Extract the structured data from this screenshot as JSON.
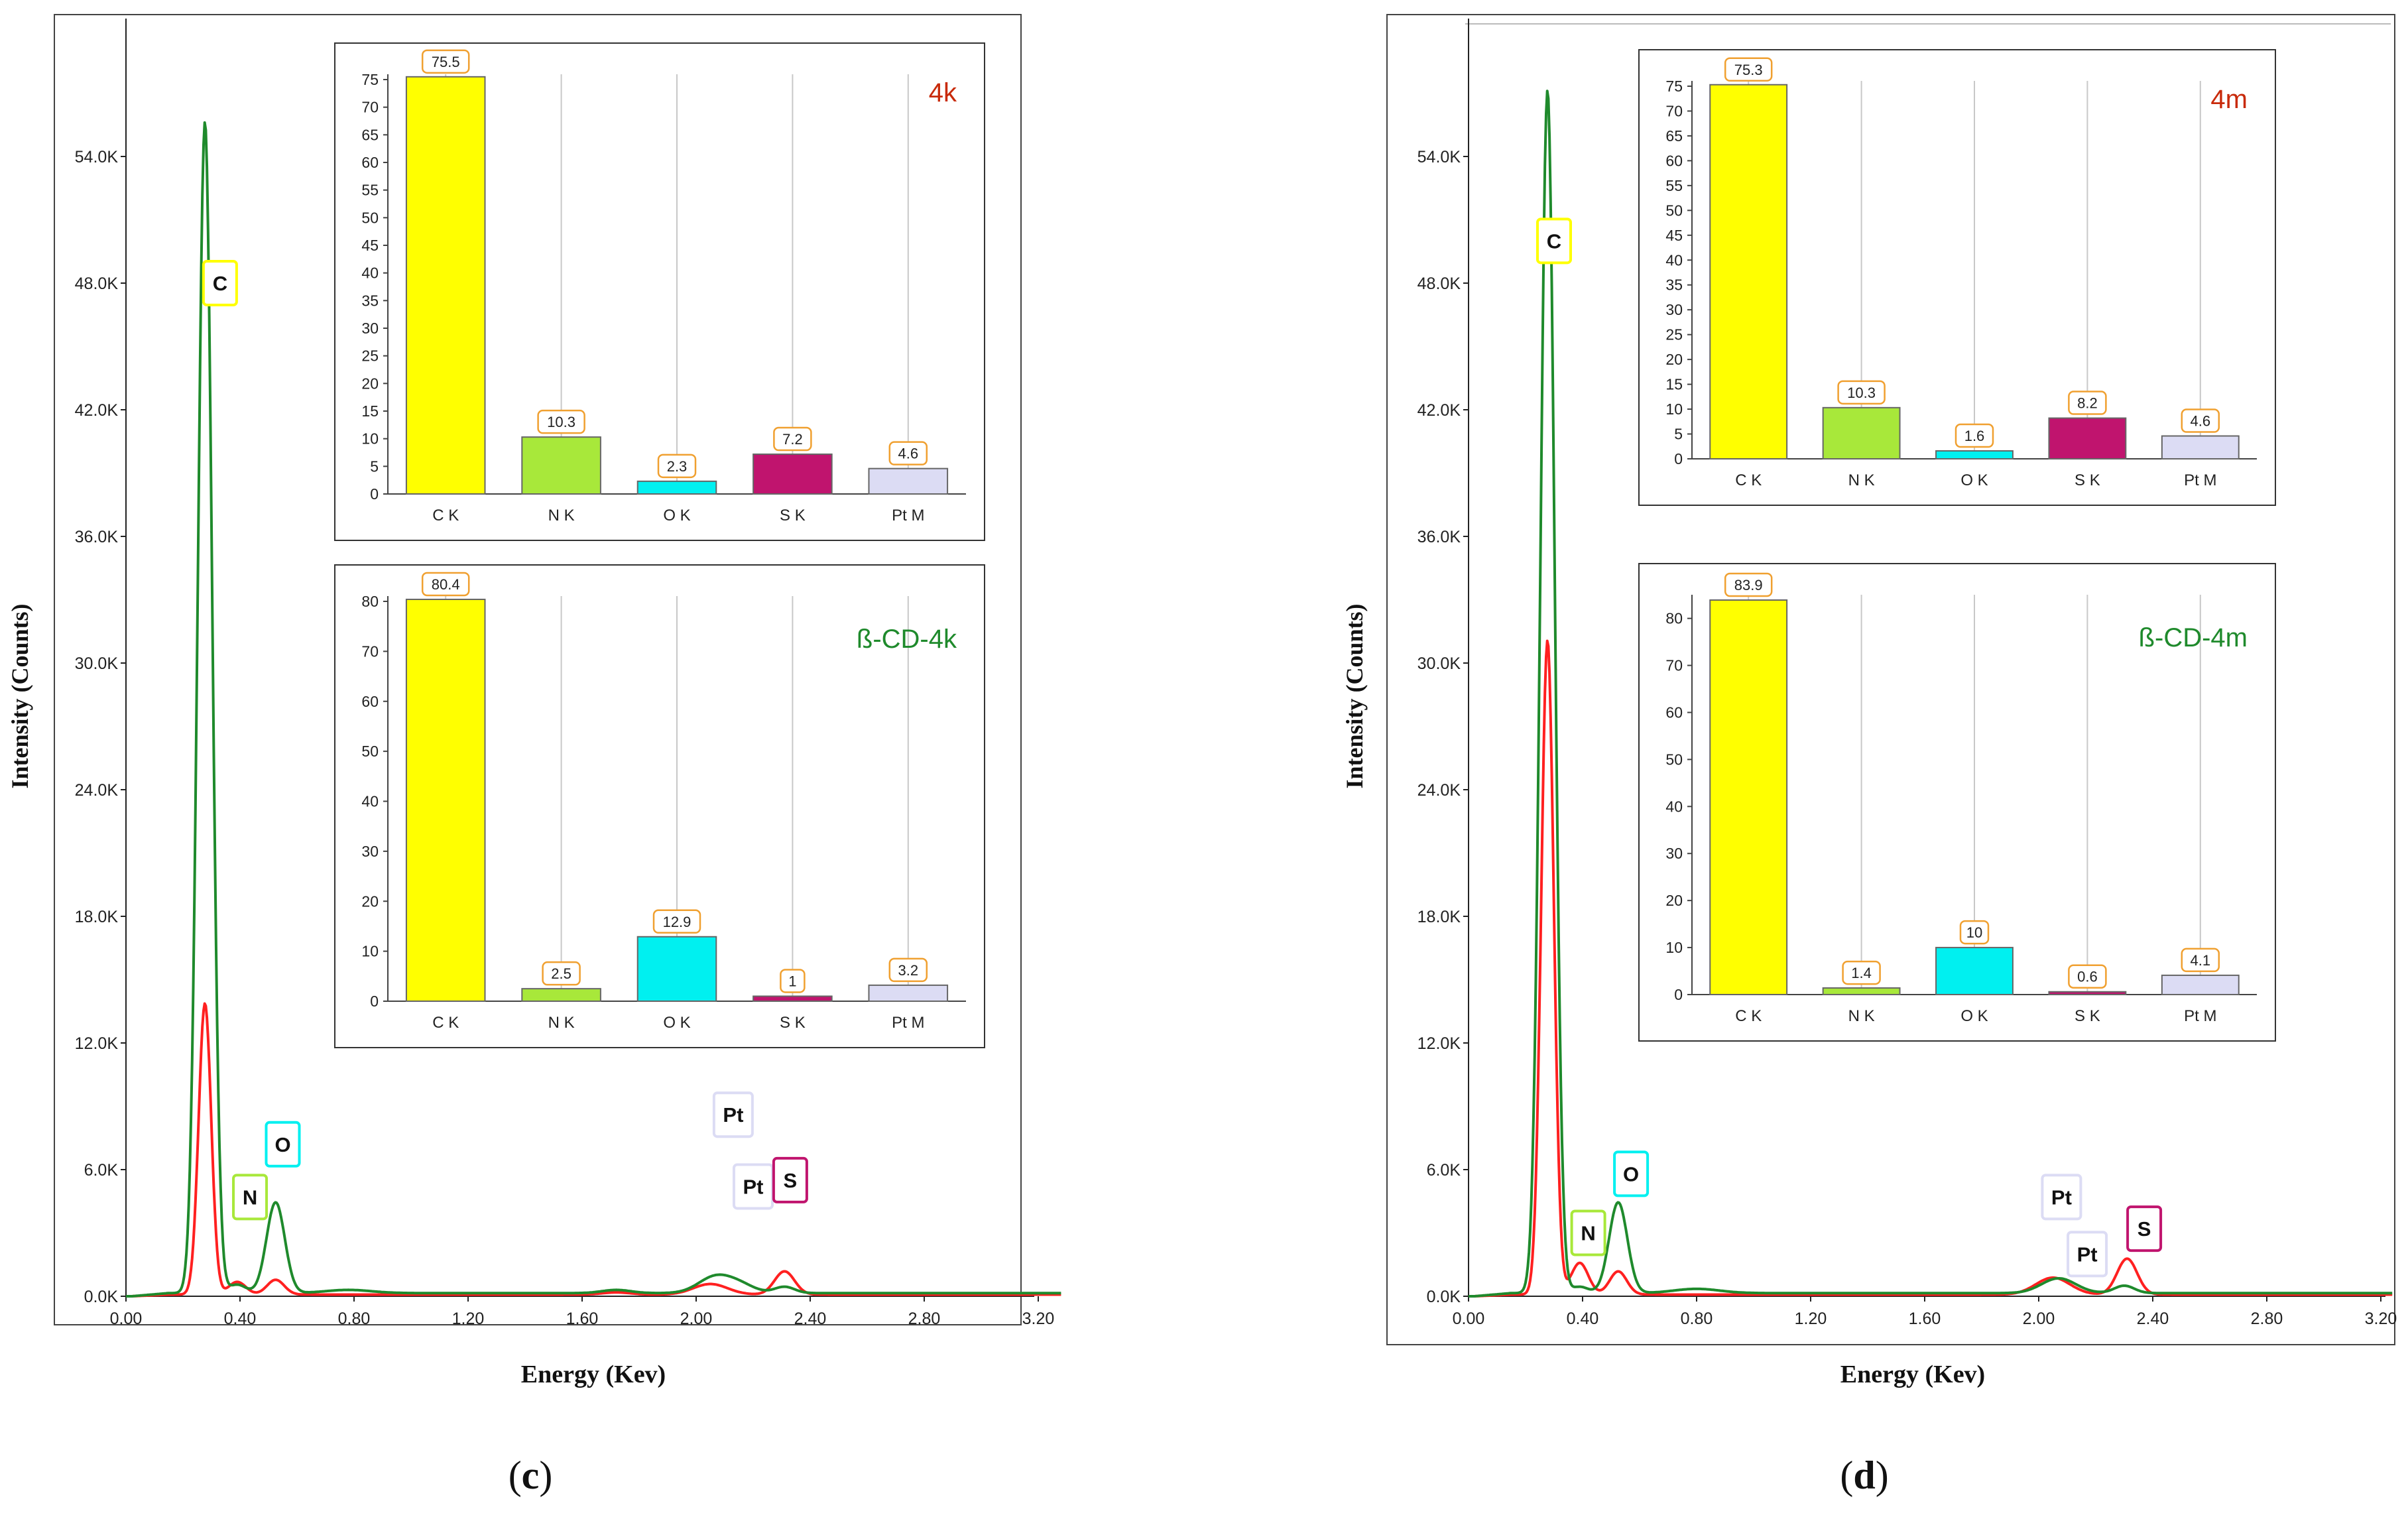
{
  "colors": {
    "sample_spectrum": "#ff2020",
    "cd_spectrum": "#1f8a2c",
    "C": "#ffff00",
    "N": "#a8e83a",
    "O": "#00f0f0",
    "S": "#c0146e",
    "Pt": "#dcdcf4",
    "title_red": "#c82a0a",
    "title_green": "#1f8a2c",
    "value_box": "#f0a030"
  },
  "chart_data": [
    {
      "id": "c",
      "caption": "c",
      "type": "line",
      "xlabel": "Energy (Kev)",
      "ylabel": "Intensity (Counts)",
      "xlim": [
        0,
        3.28
      ],
      "ylim": [
        0,
        60000
      ],
      "xticks": [
        "0.00",
        "0.40",
        "0.80",
        "1.20",
        "1.60",
        "2.00",
        "2.40",
        "2.80",
        "3.20"
      ],
      "yticks": [
        "0.0K",
        "6.0K",
        "12.0K",
        "18.0K",
        "24.0K",
        "30.0K",
        "36.0K",
        "42.0K",
        "48.0K",
        "54.0K"
      ],
      "series": [
        {
          "name": "4k",
          "color": "#ff2020",
          "baseline": 80,
          "peaks": [
            [
              0.277,
              13800,
              0.022
            ],
            [
              0.39,
              600,
              0.03
            ],
            [
              0.525,
              700,
              0.03
            ],
            [
              1.72,
              100,
              0.05
            ],
            [
              2.05,
              500,
              0.06
            ],
            [
              2.31,
              1100,
              0.035
            ]
          ]
        },
        {
          "name": "ß-CD-4k",
          "color": "#1f8a2c",
          "baseline": 150,
          "peaks": [
            [
              0.277,
              55500,
              0.025
            ],
            [
              0.39,
              400,
              0.03
            ],
            [
              0.525,
              4300,
              0.032
            ],
            [
              0.78,
              150,
              0.08
            ],
            [
              1.72,
              150,
              0.05
            ],
            [
              2.07,
              800,
              0.06
            ],
            [
              2.16,
              300,
              0.05
            ],
            [
              2.31,
              300,
              0.035
            ]
          ]
        }
      ],
      "element_labels": [
        {
          "text": "C",
          "x": 0.33,
          "y": 48000,
          "color": "#ffff00"
        },
        {
          "text": "N",
          "x": 0.435,
          "y": 4700,
          "color": "#a8e83a"
        },
        {
          "text": "O",
          "x": 0.55,
          "y": 7200,
          "color": "#00f0f0"
        },
        {
          "text": "Pt",
          "x": 2.13,
          "y": 8600,
          "color": "#dcdcf4"
        },
        {
          "text": "Pt",
          "x": 2.2,
          "y": 5200,
          "color": "#dcdcf4"
        },
        {
          "text": "S",
          "x": 2.33,
          "y": 5500,
          "color": "#c0146e"
        }
      ],
      "insets": [
        {
          "title": "4k",
          "title_color": "#c82a0a",
          "type": "bar",
          "categories": [
            "C K",
            "N K",
            "O K",
            "S K",
            "Pt M"
          ],
          "values": [
            75.5,
            10.3,
            2.3,
            7.2,
            4.6
          ],
          "labels": [
            "75.5",
            "10.3",
            "2.3",
            "7.2",
            "4.6"
          ],
          "ylim": [
            0,
            75
          ],
          "yticks": [
            "0",
            "5",
            "10",
            "15",
            "20",
            "25",
            "30",
            "35",
            "40",
            "45",
            "50",
            "55",
            "60",
            "65",
            "70",
            "75"
          ]
        },
        {
          "title": "ß-CD-4k",
          "title_color": "#1f8a2c",
          "type": "bar",
          "categories": [
            "C K",
            "N K",
            "O K",
            "S K",
            "Pt M"
          ],
          "values": [
            80.4,
            2.5,
            12.9,
            1,
            3.2
          ],
          "labels": [
            "80.4",
            "2.5",
            "12.9",
            "1",
            "3.2"
          ],
          "ylim": [
            0,
            80
          ],
          "yticks": [
            "0",
            "10",
            "20",
            "30",
            "40",
            "50",
            "60",
            "70",
            "80"
          ]
        }
      ]
    },
    {
      "id": "d",
      "caption": "d",
      "type": "line",
      "xlabel": "Energy (Kev)",
      "ylabel": "Intensity (Counts)",
      "xlim": [
        0,
        3.24
      ],
      "ylim": [
        0,
        60000
      ],
      "xticks": [
        "0.00",
        "0.40",
        "0.80",
        "1.20",
        "1.60",
        "2.00",
        "2.40",
        "2.80",
        "3.20"
      ],
      "yticks": [
        "0.0K",
        "6.0K",
        "12.0K",
        "18.0K",
        "24.0K",
        "30.0K",
        "36.0K",
        "42.0K",
        "48.0K",
        "54.0K"
      ],
      "series": [
        {
          "name": "4m",
          "color": "#ff2020",
          "baseline": 80,
          "peaks": [
            [
              0.277,
              31000,
              0.022
            ],
            [
              0.39,
              1500,
              0.03
            ],
            [
              0.525,
              1100,
              0.03
            ],
            [
              2.05,
              800,
              0.06
            ],
            [
              2.31,
              1700,
              0.035
            ]
          ]
        },
        {
          "name": "ß-CD-4m",
          "color": "#1f8a2c",
          "baseline": 150,
          "peaks": [
            [
              0.277,
              57000,
              0.025
            ],
            [
              0.39,
              300,
              0.03
            ],
            [
              0.525,
              4300,
              0.032
            ],
            [
              0.8,
              200,
              0.08
            ],
            [
              2.07,
              700,
              0.06
            ],
            [
              2.3,
              350,
              0.035
            ]
          ]
        }
      ],
      "element_labels": [
        {
          "text": "C",
          "x": 0.3,
          "y": 50000,
          "color": "#ffff00"
        },
        {
          "text": "N",
          "x": 0.42,
          "y": 3000,
          "color": "#a8e83a"
        },
        {
          "text": "O",
          "x": 0.57,
          "y": 5800,
          "color": "#00f0f0"
        },
        {
          "text": "Pt",
          "x": 2.08,
          "y": 4700,
          "color": "#dcdcf4"
        },
        {
          "text": "Pt",
          "x": 2.17,
          "y": 2000,
          "color": "#dcdcf4"
        },
        {
          "text": "S",
          "x": 2.37,
          "y": 3200,
          "color": "#c0146e"
        }
      ],
      "insets": [
        {
          "title": "4m",
          "title_color": "#c82a0a",
          "type": "bar",
          "categories": [
            "C K",
            "N K",
            "O K",
            "S K",
            "Pt M"
          ],
          "values": [
            75.3,
            10.3,
            1.6,
            8.2,
            4.6
          ],
          "labels": [
            "75.3",
            "10.3",
            "1.6",
            "8.2",
            "4.6"
          ],
          "ylim": [
            0,
            75
          ],
          "yticks": [
            "0",
            "5",
            "10",
            "15",
            "20",
            "25",
            "30",
            "35",
            "40",
            "45",
            "50",
            "55",
            "60",
            "65",
            "70",
            "75"
          ]
        },
        {
          "title": "ß-CD-4m",
          "title_color": "#1f8a2c",
          "type": "bar",
          "categories": [
            "C K",
            "N K",
            "O K",
            "S K",
            "Pt M"
          ],
          "values": [
            83.9,
            1.4,
            10,
            0.6,
            4.1
          ],
          "labels": [
            "83.9",
            "1.4",
            "10",
            "0.6",
            "4.1"
          ],
          "ylim": [
            0,
            83.9
          ],
          "yticks": [
            "0",
            "10",
            "20",
            "30",
            "40",
            "50",
            "60",
            "70",
            "80"
          ]
        }
      ]
    }
  ]
}
